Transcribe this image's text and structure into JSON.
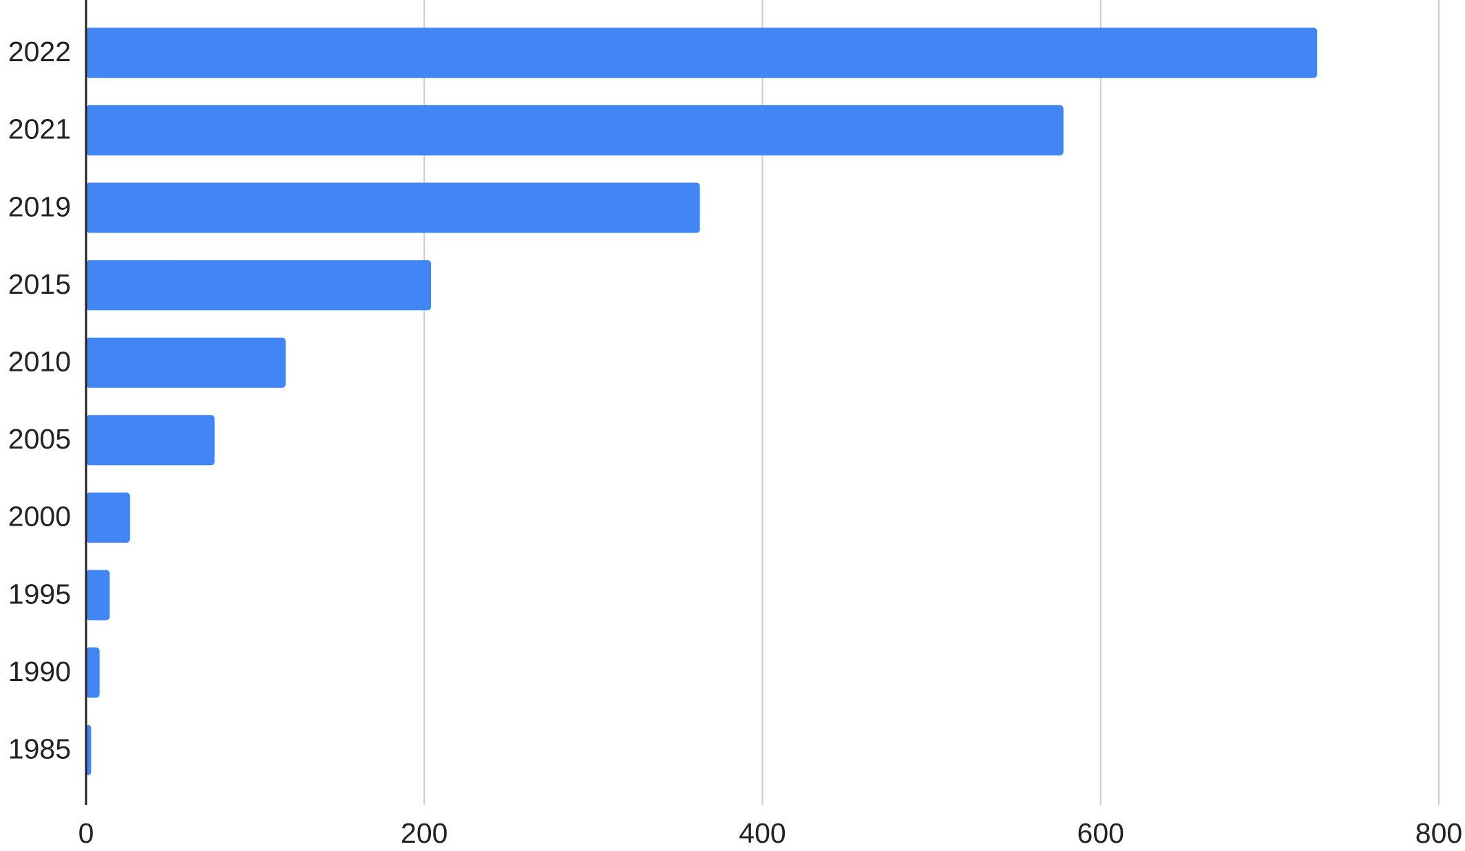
{
  "chart_data": {
    "type": "bar",
    "orientation": "horizontal",
    "categories": [
      "2022",
      "2021",
      "2019",
      "2015",
      "2010",
      "2005",
      "2000",
      "1995",
      "1990",
      "1985"
    ],
    "values": [
      728,
      578,
      363,
      204,
      118,
      76,
      26,
      14,
      8,
      3
    ],
    "color": "#4285f4",
    "xlim": [
      0,
      800
    ],
    "xticks": [
      0,
      200,
      400,
      600,
      800
    ],
    "grid": true
  }
}
